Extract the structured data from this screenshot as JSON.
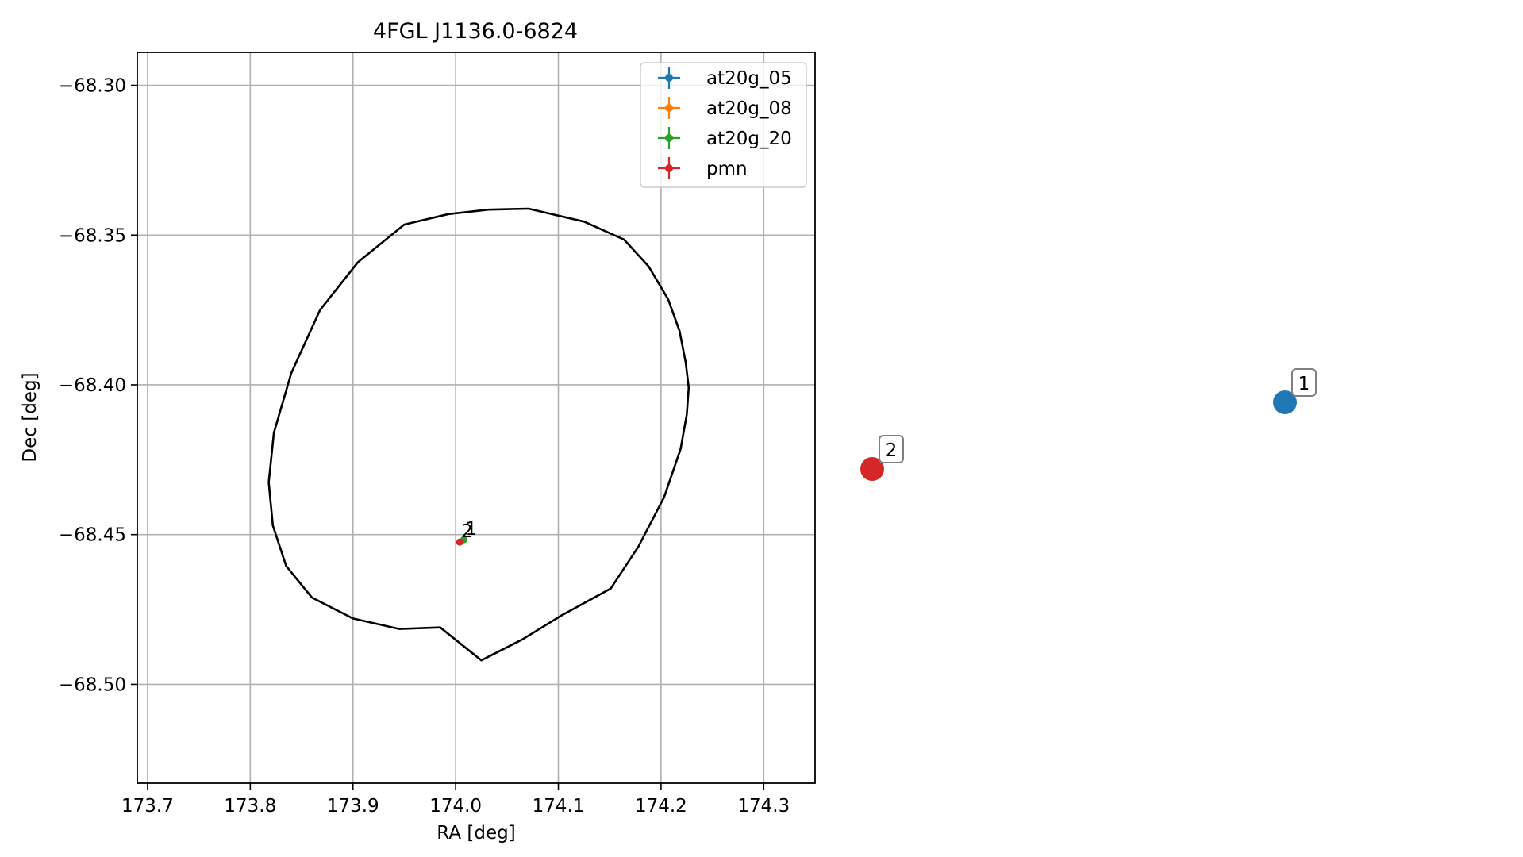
{
  "chart_data": {
    "type": "scatter",
    "title": "4FGL J1136.0-6824",
    "xlabel": "RA [deg]",
    "ylabel": "Dec [deg]",
    "xlim": [
      173.69,
      174.35
    ],
    "ylim": [
      -68.533,
      -68.289
    ],
    "x_ticks": [
      173.7,
      173.8,
      173.9,
      174.0,
      174.1,
      174.2,
      174.3
    ],
    "x_tick_labels": [
      "173.7",
      "173.8",
      "173.9",
      "174.0",
      "174.1",
      "174.2",
      "174.3"
    ],
    "y_ticks": [
      -68.3,
      -68.35,
      -68.4,
      -68.45,
      -68.5
    ],
    "y_tick_labels": [
      "−68.30",
      "−68.35",
      "−68.40",
      "−68.45",
      "−68.50"
    ],
    "grid": true,
    "legend_position": "top-right",
    "series": [
      {
        "name": "at20g_05",
        "color": "#1f77b4",
        "points": [
          {
            "x": 174.008,
            "y": -68.4517,
            "label": "1"
          }
        ]
      },
      {
        "name": "at20g_08",
        "color": "#ff7f0e",
        "points": [
          {
            "x": 174.008,
            "y": -68.4517,
            "label": "1"
          }
        ]
      },
      {
        "name": "at20g_20",
        "color": "#2ca02c",
        "points": [
          {
            "x": 174.008,
            "y": -68.4517,
            "label": "1"
          }
        ]
      },
      {
        "name": "pmn",
        "color": "#d62728",
        "points": [
          {
            "x": 174.004,
            "y": -68.4525,
            "label": "2"
          }
        ]
      }
    ],
    "ellipse": {
      "color": "#000000",
      "points": [
        [
          174.071,
          -68.3412
        ],
        [
          174.125,
          -68.3455
        ],
        [
          174.164,
          -68.3515
        ],
        [
          174.188,
          -68.3605
        ],
        [
          174.207,
          -68.3715
        ],
        [
          174.218,
          -68.382
        ],
        [
          174.224,
          -68.3925
        ],
        [
          174.227,
          -68.401
        ],
        [
          174.225,
          -68.41
        ],
        [
          174.219,
          -68.4215
        ],
        [
          174.203,
          -68.4375
        ],
        [
          174.178,
          -68.454
        ],
        [
          174.151,
          -68.468
        ],
        [
          174.103,
          -68.477
        ],
        [
          174.065,
          -68.485
        ],
        [
          174.025,
          -68.492
        ],
        [
          173.985,
          -68.481
        ],
        [
          173.945,
          -68.4815
        ],
        [
          173.9,
          -68.478
        ],
        [
          173.86,
          -68.471
        ],
        [
          173.835,
          -68.4605
        ],
        [
          173.822,
          -68.447
        ],
        [
          173.818,
          -68.4325
        ],
        [
          173.823,
          -68.416
        ],
        [
          173.84,
          -68.396
        ],
        [
          173.868,
          -68.375
        ],
        [
          173.905,
          -68.359
        ],
        [
          173.95,
          -68.3465
        ],
        [
          173.993,
          -68.343
        ],
        [
          174.032,
          -68.3415
        ]
      ]
    },
    "inset_markers": [
      {
        "label": "1",
        "color": "#1f77b4"
      },
      {
        "label": "2",
        "color": "#d62728"
      }
    ]
  }
}
